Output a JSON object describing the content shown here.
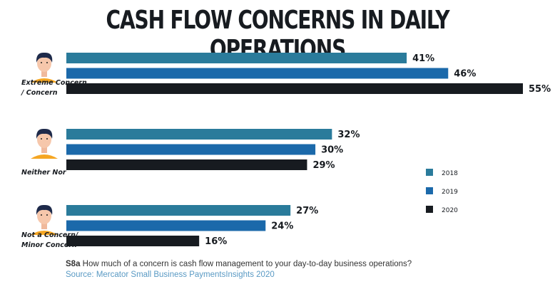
{
  "chart_data": {
    "type": "bar",
    "orientation": "horizontal",
    "title": "CASH FLOW CONCERNS IN DAILY OPERATIONS",
    "categories": [
      [
        "Extreme Concern",
        "/ Concern"
      ],
      [
        "Neither Nor"
      ],
      [
        "Not a Concern/",
        "Minor Concern"
      ]
    ],
    "series": [
      {
        "name": "2018",
        "color": "#2a7b9b",
        "values": [
          41,
          32,
          27
        ]
      },
      {
        "name": "2019",
        "color": "#1b69aa",
        "values": [
          46,
          30,
          24
        ]
      },
      {
        "name": "2020",
        "color": "#171b20",
        "values": [
          55,
          29,
          16
        ]
      }
    ],
    "value_suffix": "%",
    "xlim": [
      0,
      55
    ],
    "grid": false,
    "legend": "right",
    "icons": [
      "person-avatar-icon",
      "person-avatar-icon",
      "person-avatar-icon"
    ]
  },
  "footnote": {
    "code": "S8a",
    "question": "How  much of a concern is cash flow management to your day-to-day business operations?"
  },
  "source": "Source: Mercator Small Business PaymentsInsights 2020"
}
